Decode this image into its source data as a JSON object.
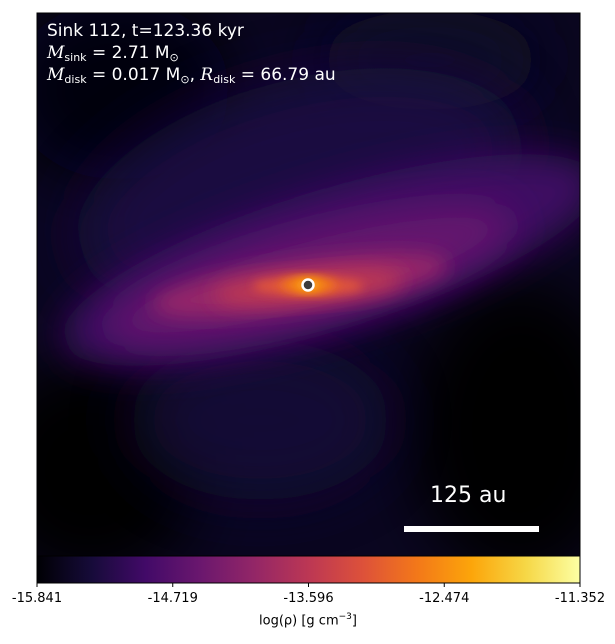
{
  "annotation": {
    "title": "Sink 112, t=123.36 kyr",
    "sink_mass_label": "M",
    "sink_mass_sub": "sink",
    "sink_mass_value": " = 2.71 M",
    "sink_mass_sun": "⊙",
    "disk_mass_label": "M",
    "disk_mass_sub": "disk",
    "disk_mass_value": " = 0.017 M",
    "disk_mass_sun": "⊙",
    "disk_radius_sep": ", ",
    "disk_radius_label": "R",
    "disk_radius_sub": "disk",
    "disk_radius_value": " = 66.79 au"
  },
  "scalebar": {
    "label": "125 au"
  },
  "colorbar": {
    "colormap": "inferno",
    "ticks": [
      "-15.841",
      "-14.719",
      "-13.596",
      "-12.474",
      "-11.352"
    ],
    "label_prefix": "log(ρ) [g cm",
    "label_sup": "−3",
    "label_suffix": "]"
  },
  "colors": {
    "background": "#000004",
    "marker_ring": "#ffffff",
    "marker_fill": "#3d3d3d"
  }
}
